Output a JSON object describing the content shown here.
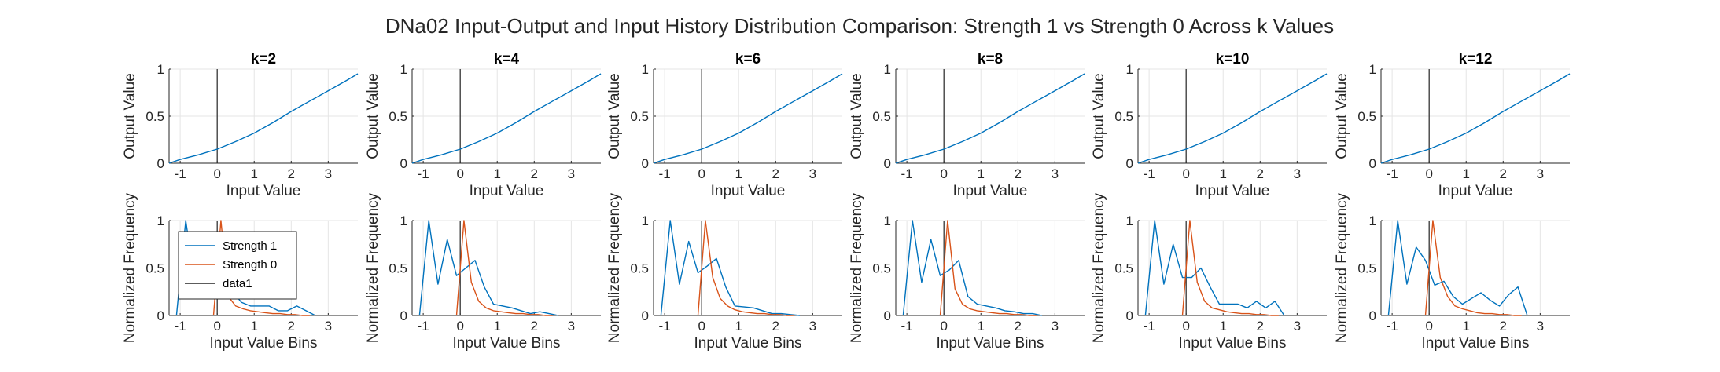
{
  "figure": {
    "title": "DNa02 Input-Output and Input History Distribution Comparison: Strength 1 vs Strength 0 Across k Values"
  },
  "colors": {
    "strength1": "#0072BD",
    "strength0": "#D95319",
    "zero_line": "#262626",
    "grid": "#e5e5e5",
    "axis": "#262626"
  },
  "chart_data": [
    {
      "type": "line",
      "panel": "k=2",
      "row": "input-output",
      "title": "k=2",
      "xlabel": "Input Value",
      "ylabel": "Output Value",
      "xlim": [
        -1.3,
        3.8
      ],
      "ylim": [
        0,
        1
      ],
      "xticks": [
        -1,
        0,
        1,
        2,
        3
      ],
      "yticks": [
        0,
        0.5,
        1
      ],
      "xticklabels": [
        "-1",
        "0",
        "1",
        "2",
        "3"
      ],
      "yticklabels": [
        "0",
        "0.5",
        "1"
      ],
      "grid": true,
      "x": [
        -1.3,
        -1,
        -0.5,
        0,
        0.5,
        1,
        1.5,
        2,
        2.5,
        3,
        3.5,
        3.8
      ],
      "y": [
        0.0,
        0.04,
        0.09,
        0.15,
        0.23,
        0.32,
        0.43,
        0.55,
        0.66,
        0.77,
        0.88,
        0.95
      ],
      "vline": 0
    },
    {
      "type": "line",
      "panel": "k=4",
      "row": "input-output",
      "title": "k=4",
      "xlabel": "Input Value",
      "ylabel": "Output Value",
      "xlim": [
        -1.3,
        3.8
      ],
      "ylim": [
        0,
        1
      ],
      "xticks": [
        -1,
        0,
        1,
        2,
        3
      ],
      "yticks": [
        0,
        0.5,
        1
      ],
      "xticklabels": [
        "-1",
        "0",
        "1",
        "2",
        "3"
      ],
      "yticklabels": [
        "0",
        "0.5",
        "1"
      ],
      "grid": true,
      "x": [
        -1.3,
        -1,
        -0.5,
        0,
        0.5,
        1,
        1.5,
        2,
        2.5,
        3,
        3.5,
        3.8
      ],
      "y": [
        0.0,
        0.04,
        0.09,
        0.15,
        0.23,
        0.32,
        0.43,
        0.55,
        0.66,
        0.77,
        0.88,
        0.95
      ],
      "vline": 0
    },
    {
      "type": "line",
      "panel": "k=6",
      "row": "input-output",
      "title": "k=6",
      "xlabel": "Input Value",
      "ylabel": "Output Value",
      "xlim": [
        -1.3,
        3.8
      ],
      "ylim": [
        0,
        1
      ],
      "xticks": [
        -1,
        0,
        1,
        2,
        3
      ],
      "yticks": [
        0,
        0.5,
        1
      ],
      "xticklabels": [
        "-1",
        "0",
        "1",
        "2",
        "3"
      ],
      "yticklabels": [
        "0",
        "0.5",
        "1"
      ],
      "grid": true,
      "x": [
        -1.3,
        -1,
        -0.5,
        0,
        0.5,
        1,
        1.5,
        2,
        2.5,
        3,
        3.5,
        3.8
      ],
      "y": [
        0.0,
        0.04,
        0.09,
        0.15,
        0.23,
        0.32,
        0.43,
        0.55,
        0.66,
        0.77,
        0.88,
        0.95
      ],
      "vline": 0
    },
    {
      "type": "line",
      "panel": "k=8",
      "row": "input-output",
      "title": "k=8",
      "xlabel": "Input Value",
      "ylabel": "Output Value",
      "xlim": [
        -1.3,
        3.8
      ],
      "ylim": [
        0,
        1
      ],
      "xticks": [
        -1,
        0,
        1,
        2,
        3
      ],
      "yticks": [
        0,
        0.5,
        1
      ],
      "xticklabels": [
        "-1",
        "0",
        "1",
        "2",
        "3"
      ],
      "yticklabels": [
        "0",
        "0.5",
        "1"
      ],
      "grid": true,
      "x": [
        -1.3,
        -1,
        -0.5,
        0,
        0.5,
        1,
        1.5,
        2,
        2.5,
        3,
        3.5,
        3.8
      ],
      "y": [
        0.0,
        0.04,
        0.09,
        0.15,
        0.23,
        0.32,
        0.43,
        0.55,
        0.66,
        0.77,
        0.88,
        0.95
      ],
      "vline": 0
    },
    {
      "type": "line",
      "panel": "k=10",
      "row": "input-output",
      "title": "k=10",
      "xlabel": "Input Value",
      "ylabel": "Output Value",
      "xlim": [
        -1.3,
        3.8
      ],
      "ylim": [
        0,
        1
      ],
      "xticks": [
        -1,
        0,
        1,
        2,
        3
      ],
      "yticks": [
        0,
        0.5,
        1
      ],
      "xticklabels": [
        "-1",
        "0",
        "1",
        "2",
        "3"
      ],
      "yticklabels": [
        "0",
        "0.5",
        "1"
      ],
      "grid": true,
      "x": [
        -1.3,
        -1,
        -0.5,
        0,
        0.5,
        1,
        1.5,
        2,
        2.5,
        3,
        3.5,
        3.8
      ],
      "y": [
        0.0,
        0.04,
        0.09,
        0.15,
        0.23,
        0.32,
        0.43,
        0.55,
        0.66,
        0.77,
        0.88,
        0.95
      ],
      "vline": 0
    },
    {
      "type": "line",
      "panel": "k=12",
      "row": "input-output",
      "title": "k=12",
      "xlabel": "Input Value",
      "ylabel": "Output Value",
      "xlim": [
        -1.3,
        3.8
      ],
      "ylim": [
        0,
        1
      ],
      "xticks": [
        -1,
        0,
        1,
        2,
        3
      ],
      "yticks": [
        0,
        0.5,
        1
      ],
      "xticklabels": [
        "-1",
        "0",
        "1",
        "2",
        "3"
      ],
      "yticklabels": [
        "0",
        "0.5",
        "1"
      ],
      "grid": true,
      "x": [
        -1.3,
        -1,
        -0.5,
        0,
        0.5,
        1,
        1.5,
        2,
        2.5,
        3,
        3.5,
        3.8
      ],
      "y": [
        0.0,
        0.04,
        0.09,
        0.15,
        0.23,
        0.32,
        0.43,
        0.55,
        0.66,
        0.77,
        0.88,
        0.95
      ],
      "vline": 0
    },
    {
      "type": "line",
      "panel": "k=2",
      "row": "distribution",
      "xlabel": "Input Value Bins",
      "ylabel": "Normalized Frequency",
      "xlim": [
        -1.3,
        3.8
      ],
      "ylim": [
        0,
        1
      ],
      "xticks": [
        -1,
        0,
        1,
        2,
        3
      ],
      "yticks": [
        0,
        0.5,
        1
      ],
      "xticklabels": [
        "-1",
        "0",
        "1",
        "2",
        "3"
      ],
      "yticklabels": [
        "0",
        "0.5",
        "1"
      ],
      "grid": true,
      "legend": "upper-left",
      "vline": 0,
      "series": [
        {
          "name": "Strength 1",
          "x": [
            -1.1,
            -0.85,
            -0.6,
            -0.35,
            -0.1,
            0.15,
            0.4,
            0.65,
            0.9,
            1.15,
            1.4,
            1.65,
            1.9,
            2.15,
            2.4,
            2.65
          ],
          "y": [
            0.0,
            1.0,
            0.33,
            0.8,
            0.4,
            0.45,
            0.26,
            0.14,
            0.1,
            0.1,
            0.1,
            0.05,
            0.05,
            0.1,
            0.05,
            0.0
          ]
        },
        {
          "name": "Strength 0",
          "x": [
            -0.1,
            0.1,
            0.3,
            0.5,
            0.7,
            0.9,
            1.1,
            1.3,
            1.5,
            1.7,
            1.9,
            2.1,
            2.3,
            2.5
          ],
          "y": [
            0.0,
            1.0,
            0.2,
            0.1,
            0.07,
            0.05,
            0.04,
            0.03,
            0.02,
            0.02,
            0.01,
            0.01,
            0.0,
            0.0
          ]
        },
        {
          "name": "data1"
        }
      ]
    },
    {
      "type": "line",
      "panel": "k=4",
      "row": "distribution",
      "xlabel": "Input Value Bins",
      "ylabel": "Normalized Frequency",
      "xlim": [
        -1.3,
        3.8
      ],
      "ylim": [
        0,
        1
      ],
      "xticks": [
        -1,
        0,
        1,
        2,
        3
      ],
      "yticks": [
        0,
        0.5,
        1
      ],
      "xticklabels": [
        "-1",
        "0",
        "1",
        "2",
        "3"
      ],
      "yticklabels": [
        "0",
        "0.5",
        "1"
      ],
      "grid": true,
      "vline": 0,
      "series": [
        {
          "name": "Strength 1",
          "x": [
            -1.1,
            -0.85,
            -0.6,
            -0.35,
            -0.1,
            0.15,
            0.4,
            0.65,
            0.9,
            1.15,
            1.4,
            1.65,
            1.9,
            2.15,
            2.4,
            2.65
          ],
          "y": [
            0.0,
            1.0,
            0.33,
            0.8,
            0.42,
            0.5,
            0.58,
            0.3,
            0.12,
            0.1,
            0.08,
            0.05,
            0.02,
            0.04,
            0.02,
            0.0
          ]
        },
        {
          "name": "Strength 0",
          "x": [
            -0.1,
            0.1,
            0.3,
            0.5,
            0.7,
            0.9,
            1.1,
            1.3,
            1.5,
            1.7,
            1.9,
            2.1,
            2.3,
            2.5
          ],
          "y": [
            0.0,
            1.0,
            0.35,
            0.15,
            0.08,
            0.05,
            0.04,
            0.03,
            0.02,
            0.02,
            0.01,
            0.01,
            0.0,
            0.0
          ]
        }
      ]
    },
    {
      "type": "line",
      "panel": "k=6",
      "row": "distribution",
      "xlabel": "Input Value Bins",
      "ylabel": "Normalized Frequency",
      "xlim": [
        -1.3,
        3.8
      ],
      "ylim": [
        0,
        1
      ],
      "xticks": [
        -1,
        0,
        1,
        2,
        3
      ],
      "yticks": [
        0,
        0.5,
        1
      ],
      "xticklabels": [
        "-1",
        "0",
        "1",
        "2",
        "3"
      ],
      "yticklabels": [
        "0",
        "0.5",
        "1"
      ],
      "grid": true,
      "vline": 0,
      "series": [
        {
          "name": "Strength 1",
          "x": [
            -1.1,
            -0.85,
            -0.6,
            -0.35,
            -0.1,
            0.15,
            0.4,
            0.65,
            0.9,
            1.15,
            1.4,
            1.65,
            1.9,
            2.15,
            2.4,
            2.65
          ],
          "y": [
            0.0,
            1.0,
            0.33,
            0.78,
            0.45,
            0.52,
            0.6,
            0.3,
            0.1,
            0.09,
            0.08,
            0.05,
            0.02,
            0.02,
            0.01,
            0.0
          ]
        },
        {
          "name": "Strength 0",
          "x": [
            -0.1,
            0.1,
            0.3,
            0.5,
            0.7,
            0.9,
            1.1,
            1.3,
            1.5,
            1.7,
            1.9,
            2.1,
            2.3,
            2.5
          ],
          "y": [
            0.0,
            1.0,
            0.4,
            0.18,
            0.1,
            0.06,
            0.04,
            0.03,
            0.02,
            0.02,
            0.01,
            0.01,
            0.0,
            0.0
          ]
        }
      ]
    },
    {
      "type": "line",
      "panel": "k=8",
      "row": "distribution",
      "xlabel": "Input Value Bins",
      "ylabel": "Normalized Frequency",
      "xlim": [
        -1.3,
        3.8
      ],
      "ylim": [
        0,
        1
      ],
      "xticks": [
        -1,
        0,
        1,
        2,
        3
      ],
      "yticks": [
        0,
        0.5,
        1
      ],
      "xticklabels": [
        "-1",
        "0",
        "1",
        "2",
        "3"
      ],
      "yticklabels": [
        "0",
        "0.5",
        "1"
      ],
      "grid": true,
      "vline": 0,
      "series": [
        {
          "name": "Strength 1",
          "x": [
            -1.1,
            -0.85,
            -0.6,
            -0.35,
            -0.1,
            0.15,
            0.4,
            0.65,
            0.9,
            1.15,
            1.4,
            1.65,
            1.9,
            2.15,
            2.4,
            2.65
          ],
          "y": [
            0.0,
            1.0,
            0.35,
            0.8,
            0.42,
            0.48,
            0.58,
            0.2,
            0.12,
            0.1,
            0.08,
            0.05,
            0.04,
            0.02,
            0.02,
            0.0
          ]
        },
        {
          "name": "Strength 0",
          "x": [
            -0.1,
            0.1,
            0.3,
            0.5,
            0.7,
            0.9,
            1.1,
            1.3,
            1.5,
            1.7,
            1.9,
            2.1,
            2.3,
            2.5
          ],
          "y": [
            0.0,
            1.0,
            0.28,
            0.12,
            0.07,
            0.05,
            0.04,
            0.03,
            0.02,
            0.02,
            0.01,
            0.01,
            0.0,
            0.0
          ]
        }
      ]
    },
    {
      "type": "line",
      "panel": "k=10",
      "row": "distribution",
      "xlabel": "Input Value Bins",
      "ylabel": "Normalized Frequency",
      "xlim": [
        -1.3,
        3.8
      ],
      "ylim": [
        0,
        1
      ],
      "xticks": [
        -1,
        0,
        1,
        2,
        3
      ],
      "yticks": [
        0,
        0.5,
        1
      ],
      "xticklabels": [
        "-1",
        "0",
        "1",
        "2",
        "3"
      ],
      "yticklabels": [
        "0",
        "0.5",
        "1"
      ],
      "grid": true,
      "vline": 0,
      "series": [
        {
          "name": "Strength 1",
          "x": [
            -1.1,
            -0.85,
            -0.6,
            -0.35,
            -0.1,
            0.15,
            0.4,
            0.65,
            0.9,
            1.15,
            1.4,
            1.65,
            1.9,
            2.15,
            2.4,
            2.65
          ],
          "y": [
            0.0,
            1.0,
            0.33,
            0.75,
            0.4,
            0.4,
            0.5,
            0.3,
            0.12,
            0.12,
            0.12,
            0.08,
            0.15,
            0.08,
            0.15,
            0.0
          ]
        },
        {
          "name": "Strength 0",
          "x": [
            -0.1,
            0.1,
            0.3,
            0.5,
            0.7,
            0.9,
            1.1,
            1.3,
            1.5,
            1.7,
            1.9,
            2.1,
            2.3,
            2.5
          ],
          "y": [
            0.0,
            1.0,
            0.35,
            0.15,
            0.08,
            0.06,
            0.04,
            0.03,
            0.02,
            0.02,
            0.01,
            0.01,
            0.0,
            0.0
          ]
        }
      ]
    },
    {
      "type": "line",
      "panel": "k=12",
      "row": "distribution",
      "xlabel": "Input Value Bins",
      "ylabel": "Normalized Frequency",
      "xlim": [
        -1.3,
        3.8
      ],
      "ylim": [
        0,
        1
      ],
      "xticks": [
        -1,
        0,
        1,
        2,
        3
      ],
      "yticks": [
        0,
        0.5,
        1
      ],
      "xticklabels": [
        "-1",
        "0",
        "1",
        "2",
        "3"
      ],
      "yticklabels": [
        "0",
        "0.5",
        "1"
      ],
      "grid": true,
      "vline": 0,
      "series": [
        {
          "name": "Strength 1",
          "x": [
            -1.1,
            -0.85,
            -0.6,
            -0.35,
            -0.1,
            0.15,
            0.4,
            0.65,
            0.9,
            1.15,
            1.4,
            1.65,
            1.9,
            2.15,
            2.4,
            2.65
          ],
          "y": [
            0.0,
            1.0,
            0.33,
            0.72,
            0.58,
            0.32,
            0.36,
            0.2,
            0.12,
            0.18,
            0.24,
            0.16,
            0.1,
            0.22,
            0.3,
            0.0
          ]
        },
        {
          "name": "Strength 0",
          "x": [
            -0.1,
            0.1,
            0.3,
            0.5,
            0.7,
            0.9,
            1.1,
            1.3,
            1.5,
            1.7,
            1.9,
            2.1,
            2.3,
            2.5
          ],
          "y": [
            0.0,
            1.0,
            0.4,
            0.2,
            0.1,
            0.07,
            0.05,
            0.03,
            0.02,
            0.02,
            0.01,
            0.01,
            0.0,
            0.0
          ]
        }
      ]
    }
  ]
}
